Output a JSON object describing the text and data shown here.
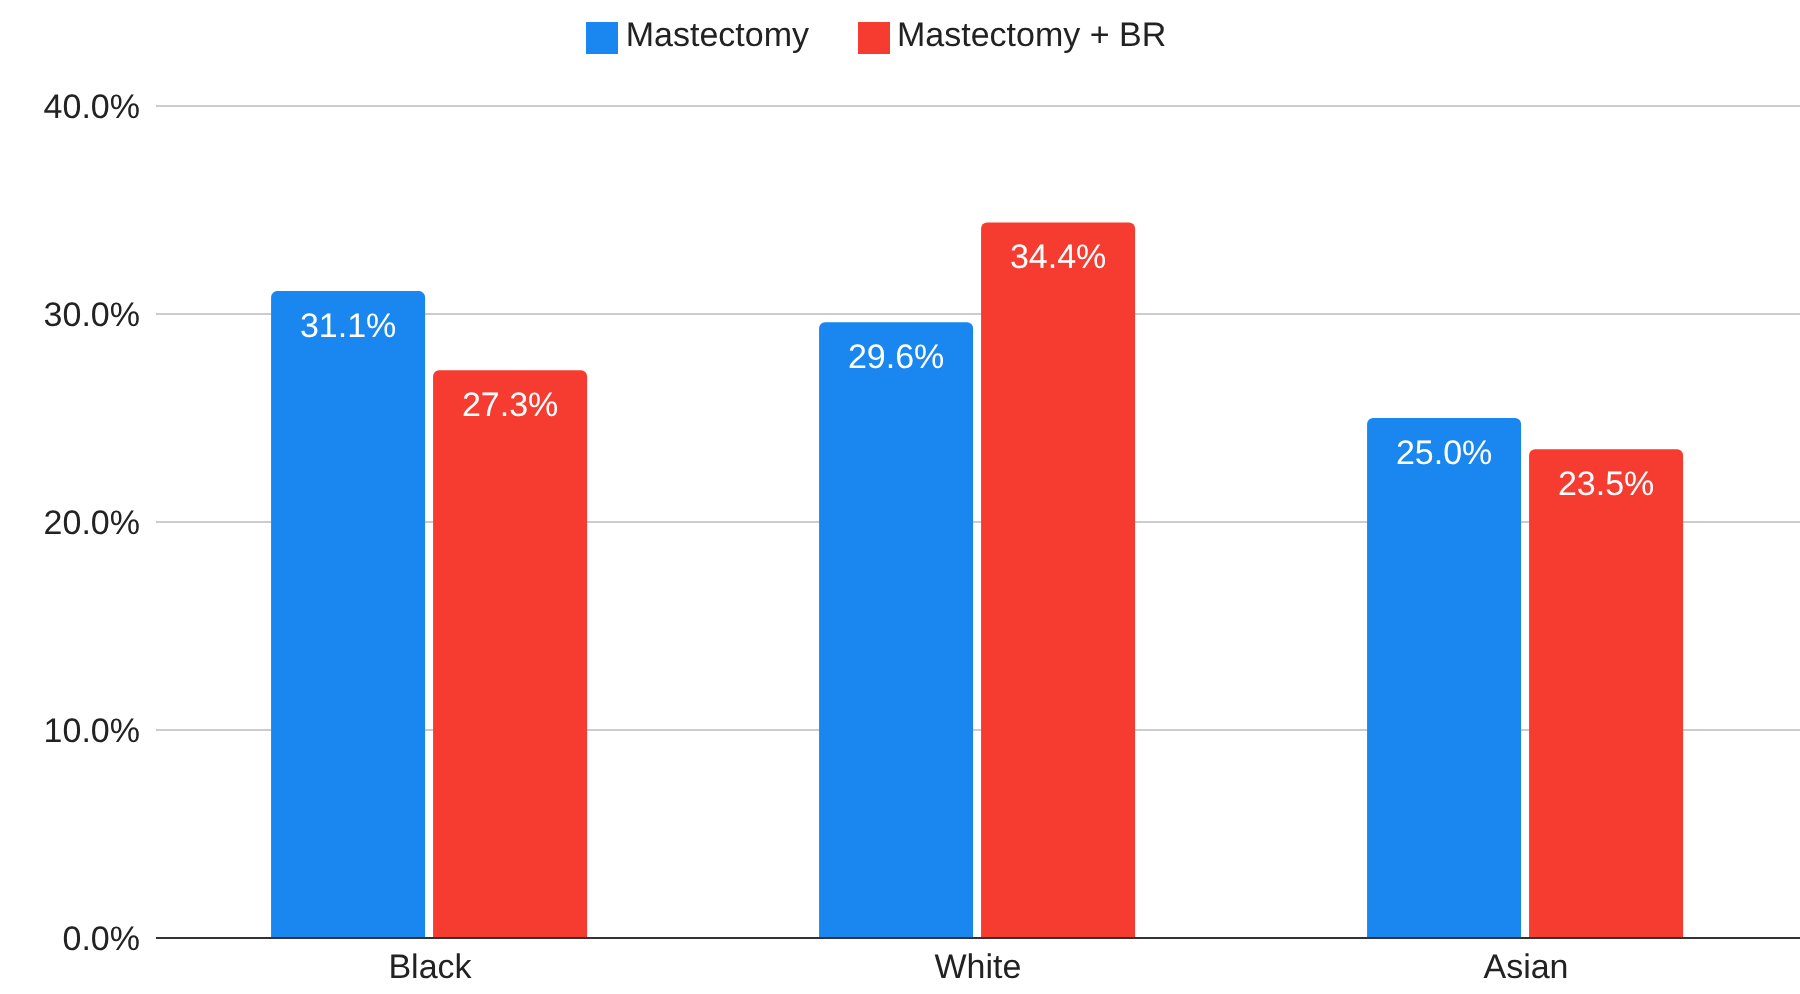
{
  "chart_data": {
    "type": "bar",
    "categories": [
      "Black",
      "White",
      "Asian"
    ],
    "series": [
      {
        "name": "Mastectomy",
        "color": "#1a87f0",
        "values": [
          31.1,
          29.6,
          25.0
        ],
        "value_labels": [
          "31.1%",
          "29.6%",
          "25.0%"
        ]
      },
      {
        "name": "Mastectomy + BR",
        "color": "#f63c31",
        "values": [
          27.3,
          34.4,
          23.5
        ],
        "value_labels": [
          "27.3%",
          "34.4%",
          "23.5%"
        ]
      }
    ],
    "ylim": [
      0,
      40
    ],
    "yticks": [
      {
        "value": 0,
        "label": "0.0%"
      },
      {
        "value": 10,
        "label": "10.0%"
      },
      {
        "value": 20,
        "label": "20.0%"
      },
      {
        "value": 30,
        "label": "30.0%"
      },
      {
        "value": 40,
        "label": "40.0%"
      }
    ],
    "grid": "y",
    "legend": "top"
  }
}
